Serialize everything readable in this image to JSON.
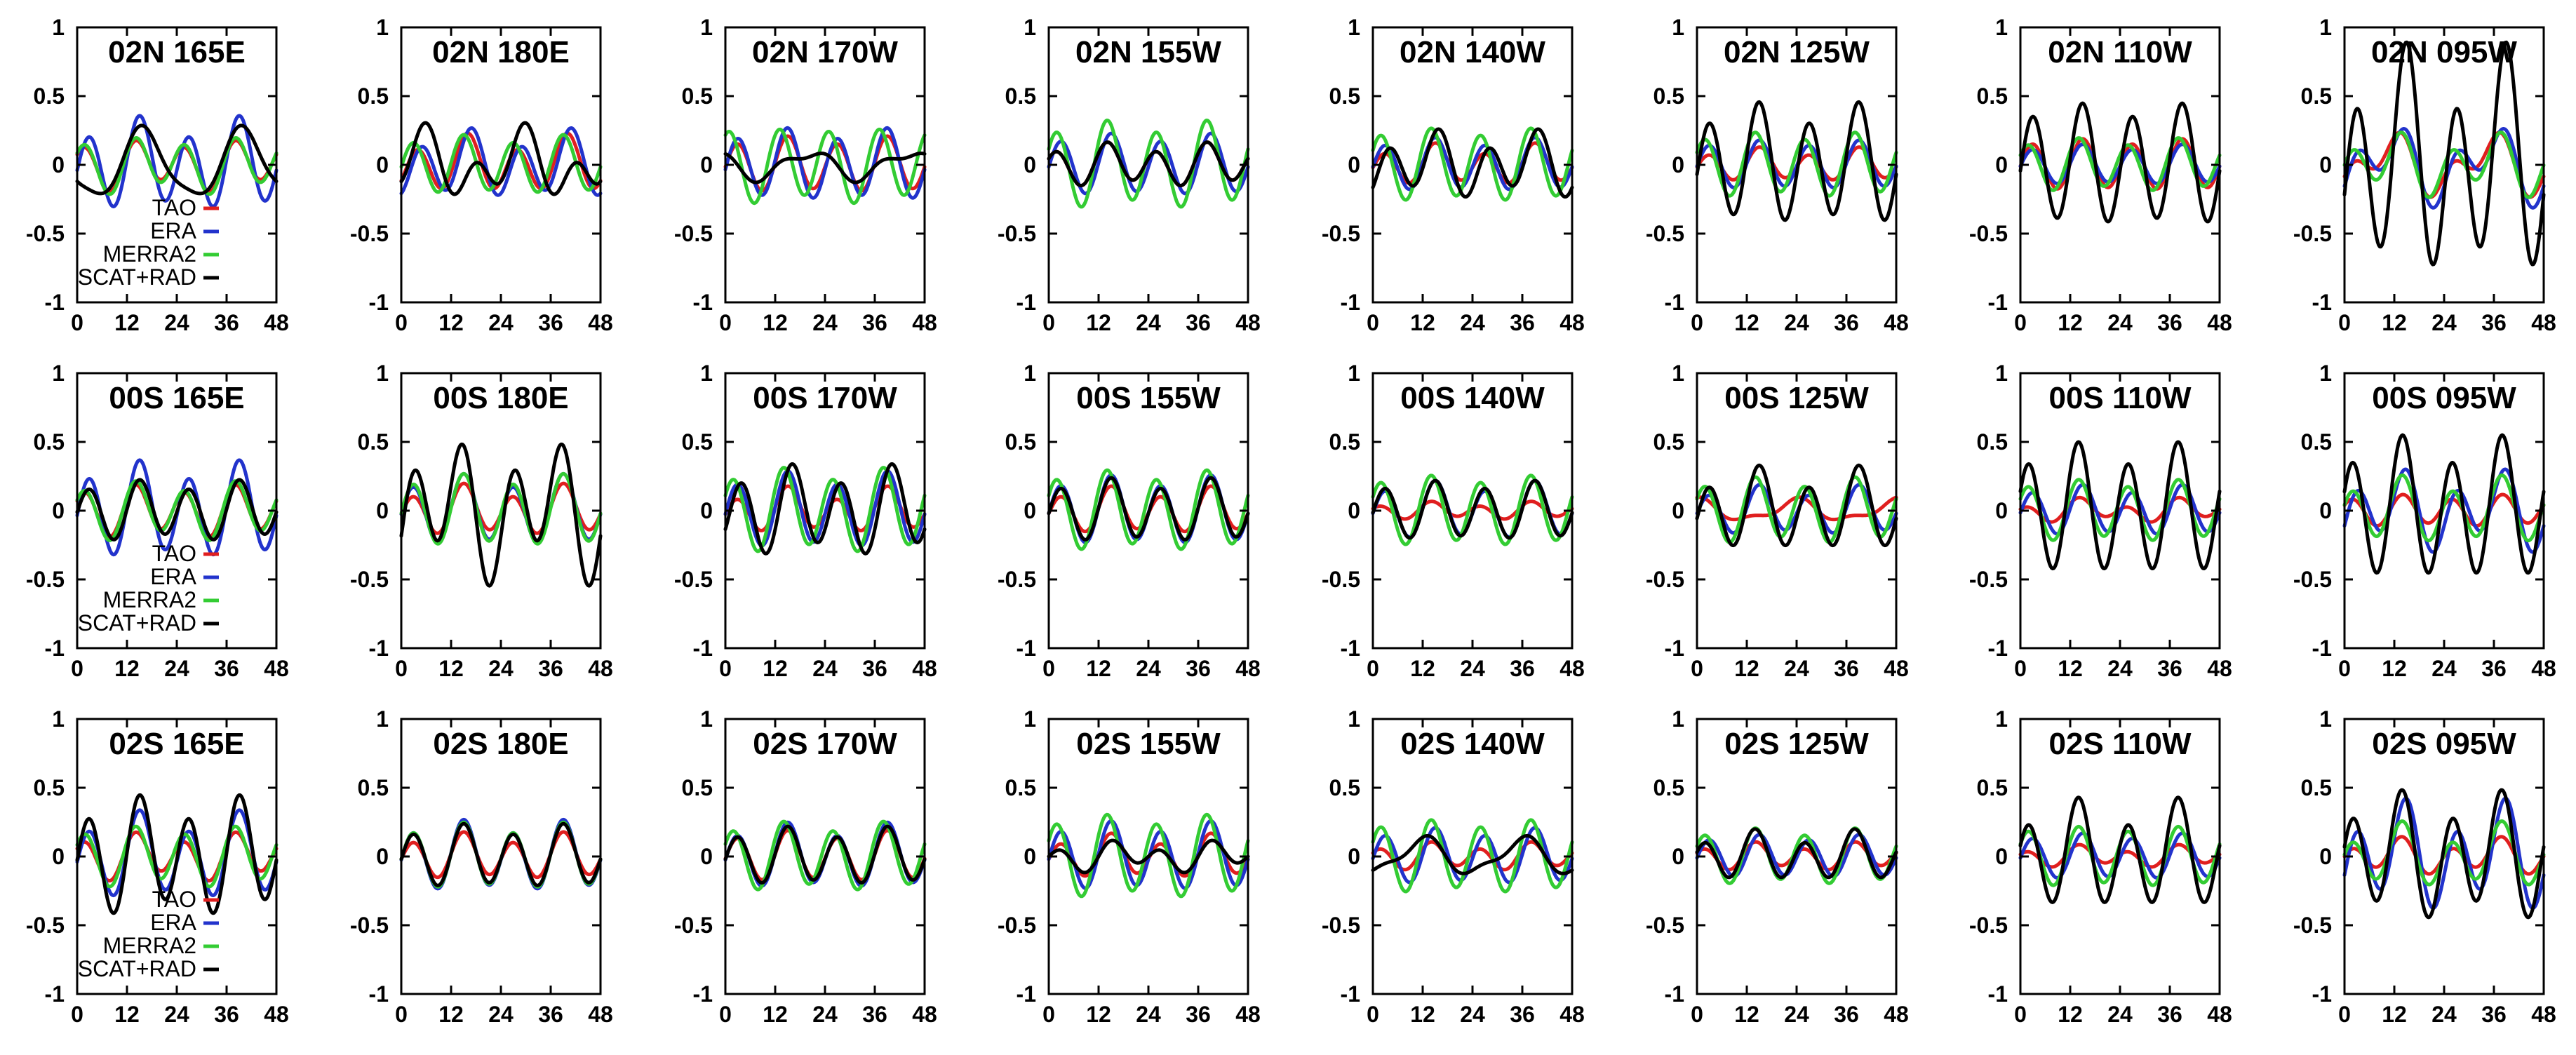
{
  "chart_data": {
    "type": "line",
    "layout": "grid 3 rows x 8 columns",
    "x_ticks": [
      "0",
      "12",
      "24",
      "36",
      "48"
    ],
    "y_ticks": [
      "1",
      "0.5",
      "0",
      "-0.5",
      "-1"
    ],
    "xlim": [
      0,
      48
    ],
    "ylim": [
      -1,
      1
    ],
    "legend_entries": [
      "TAO",
      "ERA",
      "MERRA2",
      "SCAT+RAD"
    ],
    "series_colors": {
      "TAO": "#e01f1f",
      "ERA": "#2233cc",
      "MERRA2": "#33cc33",
      "SCAT+RAD": "#000000"
    },
    "series_note": "Each series is a 48-hour curve sum of a 24 h and a 12 h harmonic: y(t) = a1*cos(2*pi*(t-p1)/24) + a2*cos(2*pi*(t-p2)/12); values estimated from the figure",
    "panels": [
      {
        "title": "02N 165E",
        "legend": true,
        "series": {
          "TAO": [
            0.05,
            18,
            0.15,
            2
          ],
          "ERA": [
            0.08,
            16,
            0.28,
            3
          ],
          "MERRA2": [
            0.05,
            18,
            0.17,
            2
          ],
          "SCAT+RAD": [
            0.24,
            16,
            0.05,
            3
          ]
        }
      },
      {
        "title": "02N 180E",
        "series": {
          "TAO": [
            0.06,
            16,
            0.17,
            4
          ],
          "ERA": [
            0.07,
            16,
            0.2,
            5
          ],
          "MERRA2": [
            0.03,
            16,
            0.19,
            3
          ],
          "SCAT+RAD": [
            0.15,
            5,
            0.16,
            6
          ]
        }
      },
      {
        "title": "02N 170W",
        "series": {
          "TAO": [
            0.03,
            16,
            0.18,
            3
          ],
          "ERA": [
            0.04,
            14,
            0.23,
            3
          ],
          "MERRA2": [
            0.03,
            18,
            0.25,
            1
          ],
          "SCAT+RAD": [
            0.09,
            20,
            0.04,
            1
          ]
        }
      },
      {
        "title": "02N 155W",
        "series": {
          "TAO": [
            0.04,
            16,
            0.13,
            2
          ],
          "ERA": [
            0.03,
            16,
            0.2,
            3
          ],
          "MERRA2": [
            0.05,
            16,
            0.28,
            2
          ],
          "SCAT+RAD": [
            0.04,
            16,
            0.13,
            2
          ]
        }
      },
      {
        "title": "02N 140W",
        "series": {
          "TAO": [
            0.04,
            16,
            0.12,
            3
          ],
          "ERA": [
            0.03,
            16,
            0.17,
            3
          ],
          "MERRA2": [
            0.03,
            16,
            0.24,
            2
          ],
          "SCAT+RAD": [
            0.08,
            14,
            0.19,
            4
          ]
        }
      },
      {
        "title": "02N 125W",
        "series": {
          "TAO": [
            0.03,
            16,
            0.1,
            3
          ],
          "ERA": [
            0.02,
            16,
            0.16,
            3
          ],
          "MERRA2": [
            0.03,
            16,
            0.21,
            2
          ],
          "SCAT+RAD": [
            0.08,
            14,
            0.38,
            3
          ]
        }
      },
      {
        "title": "02N 110W",
        "series": {
          "TAO": [
            0.02,
            16,
            0.17,
            3
          ],
          "ERA": [
            0.02,
            16,
            0.13,
            3
          ],
          "MERRA2": [
            0.03,
            16,
            0.17,
            2
          ],
          "SCAT+RAD": [
            0.05,
            14,
            0.4,
            3
          ]
        }
      },
      {
        "title": "02N 095W",
        "series": {
          "TAO": [
            0.15,
            11,
            0.12,
            2
          ],
          "ERA": [
            0.16,
            11,
            0.17,
            3
          ],
          "MERRA2": [
            0.09,
            11,
            0.17,
            2
          ],
          "SCAT+RAD": [
            0.25,
            14,
            0.65,
            3
          ]
        }
      },
      {
        "title": "00S 165E",
        "legend": true,
        "series": {
          "TAO": [
            0.04,
            17,
            0.16,
            2
          ],
          "ERA": [
            0.07,
            16,
            0.3,
            3
          ],
          "MERRA2": [
            0.05,
            17,
            0.18,
            2
          ],
          "SCAT+RAD": [
            0.04,
            17,
            0.19,
            3
          ]
        }
      },
      {
        "title": "00S 180E",
        "series": {
          "TAO": [
            0.05,
            16,
            0.15,
            3
          ],
          "ERA": [
            0.05,
            16,
            0.22,
            3
          ],
          "MERRA2": [
            0.04,
            16,
            0.23,
            3
          ],
          "SCAT+RAD": [
            0.19,
            11,
            0.38,
            3
          ]
        }
      },
      {
        "title": "00S 170W",
        "series": {
          "TAO": [
            0.05,
            16,
            0.13,
            3
          ],
          "ERA": [
            0.05,
            16,
            0.24,
            3
          ],
          "MERRA2": [
            0.05,
            16,
            0.27,
            2
          ],
          "SCAT+RAD": [
            0.08,
            18,
            0.27,
            4
          ]
        }
      },
      {
        "title": "00S 155W",
        "series": {
          "TAO": [
            0.04,
            16,
            0.14,
            3
          ],
          "ERA": [
            0.04,
            16,
            0.22,
            3
          ],
          "MERRA2": [
            0.04,
            16,
            0.26,
            2
          ],
          "SCAT+RAD": [
            0.04,
            16,
            0.2,
            3
          ]
        }
      },
      {
        "title": "00S 140W",
        "series": {
          "TAO": [
            0.02,
            16,
            0.05,
            2
          ],
          "ERA": [
            0.04,
            16,
            0.18,
            3
          ],
          "MERRA2": [
            0.03,
            16,
            0.23,
            2
          ],
          "SCAT+RAD": [
            0.03,
            16,
            0.19,
            3
          ]
        }
      },
      {
        "title": "00S 125W",
        "series": {
          "TAO": [
            0.07,
            48,
            0.03,
            1
          ],
          "ERA": [
            0.04,
            16,
            0.15,
            3
          ],
          "MERRA2": [
            0.04,
            16,
            0.21,
            2
          ],
          "SCAT+RAD": [
            0.08,
            15,
            0.25,
            3
          ]
        }
      },
      {
        "title": "00S 110W",
        "series": {
          "TAO": [
            0.04,
            16,
            0.06,
            2
          ],
          "ERA": [
            0.03,
            16,
            0.16,
            3
          ],
          "MERRA2": [
            0.03,
            16,
            0.2,
            2
          ],
          "SCAT+RAD": [
            0.08,
            14,
            0.42,
            2
          ]
        }
      },
      {
        "title": "00S 095W",
        "series": {
          "TAO": [
            0.02,
            16,
            0.1,
            2
          ],
          "ERA": [
            0.11,
            12,
            0.22,
            3
          ],
          "MERRA2": [
            0.06,
            13,
            0.2,
            2
          ],
          "SCAT+RAD": [
            0.1,
            14,
            0.45,
            2
          ]
        }
      },
      {
        "title": "02S 165E",
        "legend": true,
        "series": {
          "TAO": [
            0.05,
            17,
            0.14,
            2
          ],
          "ERA": [
            0.08,
            16,
            0.26,
            3
          ],
          "MERRA2": [
            0.04,
            17,
            0.19,
            2
          ],
          "SCAT+RAD": [
            0.1,
            17,
            0.36,
            3
          ]
        }
      },
      {
        "title": "02S 180E",
        "series": {
          "TAO": [
            0.04,
            16,
            0.14,
            3
          ],
          "ERA": [
            0.05,
            16,
            0.22,
            3
          ],
          "MERRA2": [
            0.04,
            16,
            0.21,
            3
          ],
          "SCAT+RAD": [
            0.04,
            16,
            0.2,
            3
          ]
        }
      },
      {
        "title": "02S 170W",
        "series": {
          "TAO": [
            0.03,
            16,
            0.16,
            3
          ],
          "ERA": [
            0.05,
            16,
            0.2,
            3
          ],
          "MERRA2": [
            0.04,
            16,
            0.22,
            2
          ],
          "SCAT+RAD": [
            0.04,
            16,
            0.18,
            3
          ]
        }
      },
      {
        "title": "02S 155W",
        "series": {
          "TAO": [
            0.04,
            16,
            0.13,
            3
          ],
          "ERA": [
            0.04,
            16,
            0.22,
            3
          ],
          "MERRA2": [
            0.04,
            16,
            0.27,
            2
          ],
          "SCAT+RAD": [
            0.05,
            18,
            0.08,
            3
          ]
        }
      },
      {
        "title": "02S 140W",
        "series": {
          "TAO": [
            0.03,
            16,
            0.08,
            2
          ],
          "ERA": [
            0.03,
            16,
            0.18,
            3
          ],
          "MERRA2": [
            0.03,
            16,
            0.24,
            2
          ],
          "SCAT+RAD": [
            0.12,
            36,
            0.04,
            2
          ]
        }
      },
      {
        "title": "02S 125W",
        "series": {
          "TAO": [
            0.03,
            16,
            0.08,
            2
          ],
          "ERA": [
            0.02,
            16,
            0.14,
            3
          ],
          "MERRA2": [
            0.03,
            16,
            0.18,
            2
          ],
          "SCAT+RAD": [
            0.05,
            14,
            0.15,
            2
          ]
        }
      },
      {
        "title": "02S 110W",
        "series": {
          "TAO": [
            0.03,
            16,
            0.06,
            2
          ],
          "ERA": [
            0.02,
            16,
            0.15,
            3
          ],
          "MERRA2": [
            0.02,
            16,
            0.2,
            2
          ],
          "SCAT+RAD": [
            0.1,
            14,
            0.33,
            2
          ]
        }
      },
      {
        "title": "02S 095W",
        "series": {
          "TAO": [
            0.05,
            12,
            0.1,
            2
          ],
          "ERA": [
            0.14,
            13,
            0.3,
            3
          ],
          "MERRA2": [
            0.08,
            13,
            0.18,
            2
          ],
          "SCAT+RAD": [
            0.12,
            12,
            0.38,
            2
          ]
        }
      }
    ]
  }
}
